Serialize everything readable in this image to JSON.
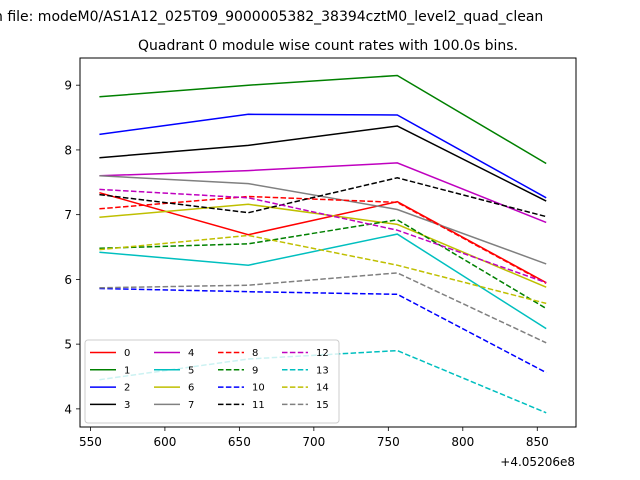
{
  "chart_data": {
    "type": "line",
    "suptitle": "n file: modeM0/AS1A12_025T09_9000005382_38394cztM0_level2_quad_clean",
    "title": "Quadrant 0 module wise count rates with 100.0s bins.",
    "x_offset_label": "+4.05206e8",
    "x": [
      556,
      656,
      756,
      856
    ],
    "xlim": [
      543,
      876
    ],
    "ylim": [
      3.72,
      9.42
    ],
    "xticks": [
      550,
      600,
      650,
      700,
      750,
      800,
      850
    ],
    "yticks": [
      4,
      5,
      6,
      7,
      8,
      9
    ],
    "xtick_labels": [
      "550",
      "600",
      "650",
      "700",
      "750",
      "800",
      "850"
    ],
    "ytick_labels": [
      "4",
      "5",
      "6",
      "7",
      "8",
      "9"
    ],
    "legend_position": "lower-left",
    "legend_columns": 4,
    "series": [
      {
        "name": "0",
        "color": "#ff0000",
        "dash": "solid",
        "values": [
          7.34,
          6.69,
          7.2,
          5.95
        ]
      },
      {
        "name": "1",
        "color": "#008000",
        "dash": "solid",
        "values": [
          8.82,
          9.0,
          9.15,
          7.79
        ]
      },
      {
        "name": "2",
        "color": "#0000ff",
        "dash": "solid",
        "values": [
          8.24,
          8.55,
          8.54,
          7.26
        ]
      },
      {
        "name": "3",
        "color": "#000000",
        "dash": "solid",
        "values": [
          7.88,
          8.07,
          8.37,
          7.21
        ]
      },
      {
        "name": "4",
        "color": "#bf00bf",
        "dash": "solid",
        "values": [
          7.6,
          7.68,
          7.8,
          6.88
        ]
      },
      {
        "name": "5",
        "color": "#00bfbf",
        "dash": "solid",
        "values": [
          6.42,
          6.22,
          6.7,
          5.24
        ]
      },
      {
        "name": "6",
        "color": "#bfbf00",
        "dash": "solid",
        "values": [
          6.96,
          7.16,
          6.85,
          5.88
        ]
      },
      {
        "name": "7",
        "color": "#808080",
        "dash": "solid",
        "values": [
          7.6,
          7.48,
          7.08,
          6.24
        ]
      },
      {
        "name": "8",
        "color": "#ff0000",
        "dash": "dashed",
        "values": [
          7.09,
          7.28,
          7.19,
          5.94
        ]
      },
      {
        "name": "9",
        "color": "#008000",
        "dash": "dashed",
        "values": [
          6.48,
          6.55,
          6.92,
          5.55
        ]
      },
      {
        "name": "10",
        "color": "#0000ff",
        "dash": "dashed",
        "values": [
          5.86,
          5.81,
          5.77,
          4.56
        ]
      },
      {
        "name": "11",
        "color": "#000000",
        "dash": "dashed",
        "values": [
          7.31,
          7.03,
          7.57,
          6.97
        ]
      },
      {
        "name": "12",
        "color": "#bf00bf",
        "dash": "dashed",
        "values": [
          7.39,
          7.26,
          6.76,
          5.95
        ]
      },
      {
        "name": "13",
        "color": "#00bfbf",
        "dash": "dashed",
        "values": [
          4.45,
          4.77,
          4.9,
          3.94
        ]
      },
      {
        "name": "14",
        "color": "#bfbf00",
        "dash": "dashed",
        "values": [
          6.46,
          6.68,
          6.22,
          5.63
        ]
      },
      {
        "name": "15",
        "color": "#808080",
        "dash": "dashed",
        "values": [
          5.87,
          5.91,
          6.1,
          5.02
        ]
      }
    ]
  }
}
